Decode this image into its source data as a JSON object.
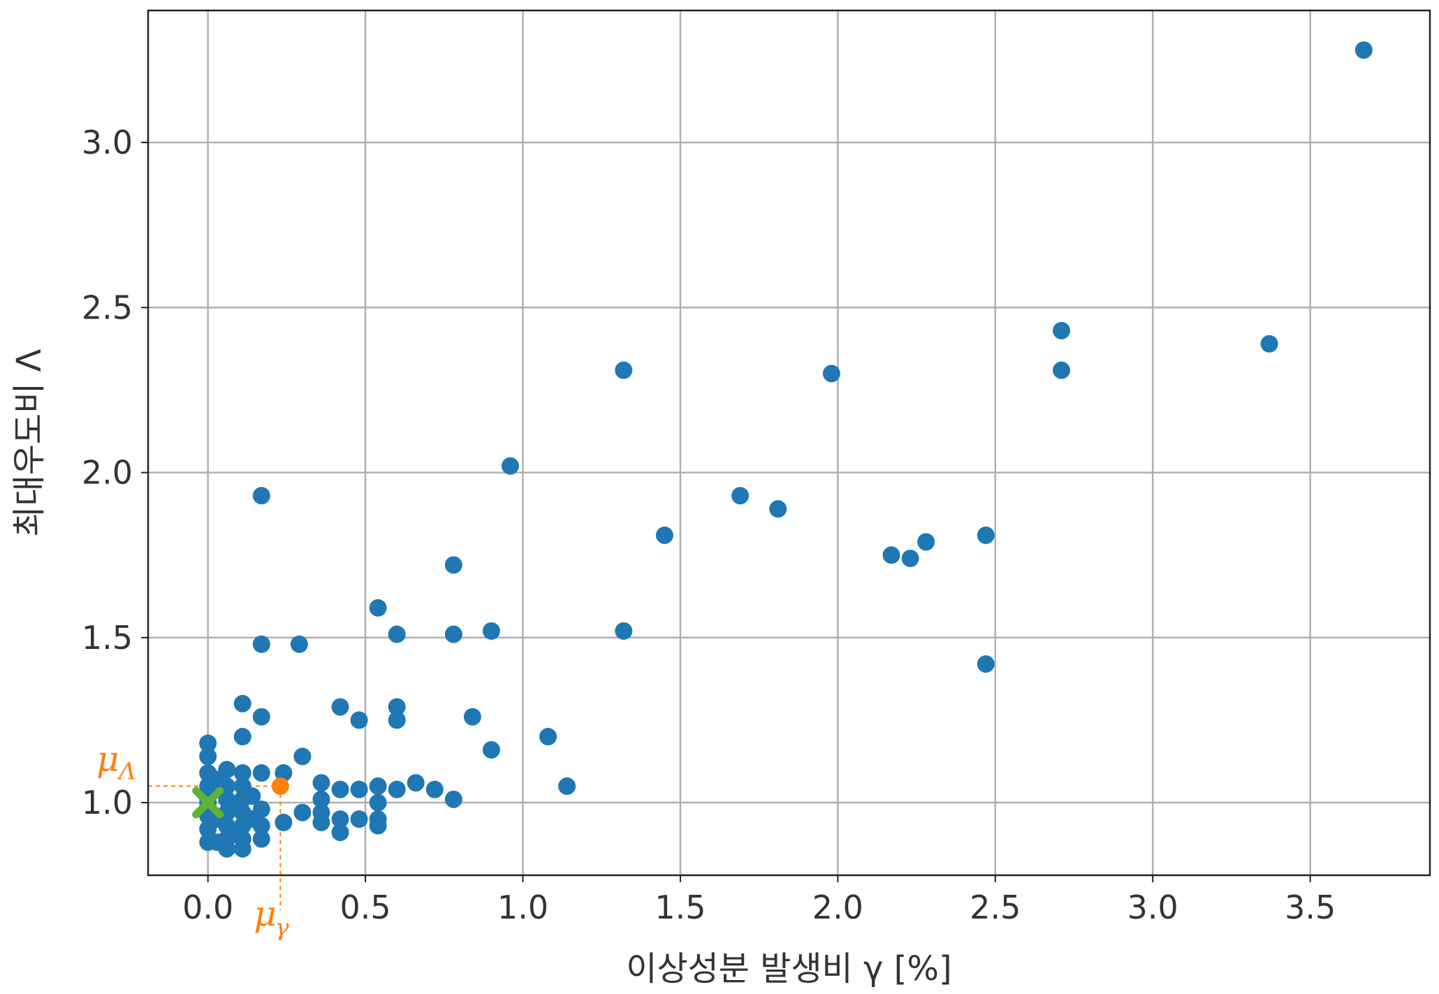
{
  "chart_data": {
    "type": "scatter",
    "title": "",
    "xlabel": "이상성분 발생비 γ [%]",
    "ylabel": "최대우도비 Λ",
    "xlim": [
      -0.19,
      3.88
    ],
    "ylim": [
      0.78,
      3.4
    ],
    "xticks": [
      0.0,
      0.5,
      1.0,
      1.5,
      2.0,
      2.5,
      3.0,
      3.5
    ],
    "yticks": [
      1.0,
      1.5,
      2.0,
      2.5,
      3.0
    ],
    "xtick_labels": [
      "0.0",
      "0.5",
      "1.0",
      "1.5",
      "2.0",
      "2.5",
      "3.0",
      "3.5"
    ],
    "ytick_labels": [
      "1.0",
      "1.5",
      "2.0",
      "2.5",
      "3.0"
    ],
    "grid": true,
    "colors": {
      "points": "#1f77b4",
      "mean": "#ff7f0e",
      "reference": "#5cb336",
      "annotation": "#ff7f0e",
      "grid": "#b0b0b0"
    },
    "series": [
      {
        "points": [
          [
            3.67,
            3.28
          ],
          [
            3.37,
            2.39
          ],
          [
            2.71,
            2.43
          ],
          [
            2.71,
            2.31
          ],
          [
            1.98,
            2.3
          ],
          [
            1.32,
            2.31
          ],
          [
            0.96,
            2.02
          ],
          [
            1.69,
            1.93
          ],
          [
            1.81,
            1.89
          ],
          [
            1.45,
            1.81
          ],
          [
            2.47,
            1.81
          ],
          [
            2.28,
            1.79
          ],
          [
            2.17,
            1.75
          ],
          [
            2.23,
            1.74
          ],
          [
            2.47,
            1.42
          ],
          [
            1.32,
            1.52
          ],
          [
            0.78,
            1.72
          ],
          [
            0.54,
            1.59
          ],
          [
            0.6,
            1.51
          ],
          [
            0.78,
            1.51
          ],
          [
            0.9,
            1.52
          ],
          [
            0.17,
            1.93
          ],
          [
            0.17,
            1.48
          ],
          [
            0.29,
            1.48
          ],
          [
            0.11,
            1.3
          ],
          [
            0.17,
            1.26
          ],
          [
            0.11,
            1.2
          ],
          [
            0.42,
            1.29
          ],
          [
            0.6,
            1.29
          ],
          [
            0.6,
            1.25
          ],
          [
            0.48,
            1.25
          ],
          [
            0.84,
            1.26
          ],
          [
            1.08,
            1.2
          ],
          [
            0.9,
            1.16
          ],
          [
            1.14,
            1.05
          ],
          [
            0.3,
            1.14
          ],
          [
            0.24,
            1.09
          ],
          [
            0.17,
            1.09
          ],
          [
            0.36,
            1.06
          ],
          [
            0.42,
            1.04
          ],
          [
            0.48,
            1.04
          ],
          [
            0.54,
            1.05
          ],
          [
            0.6,
            1.04
          ],
          [
            0.66,
            1.06
          ],
          [
            0.72,
            1.04
          ],
          [
            0.78,
            1.01
          ],
          [
            0.36,
            1.01
          ],
          [
            0.54,
            1.0
          ],
          [
            0.36,
            0.97
          ],
          [
            0.3,
            0.97
          ],
          [
            0.42,
            0.95
          ],
          [
            0.48,
            0.95
          ],
          [
            0.54,
            0.95
          ],
          [
            0.36,
            0.94
          ],
          [
            0.24,
            0.94
          ],
          [
            0.42,
            0.91
          ],
          [
            0.54,
            0.93
          ],
          [
            0.17,
            0.98
          ],
          [
            0.17,
            0.93
          ],
          [
            0.17,
            0.89
          ],
          [
            0.0,
            1.18
          ],
          [
            0.0,
            1.14
          ],
          [
            0.0,
            1.09
          ],
          [
            0.0,
            1.05
          ],
          [
            0.0,
            1.0
          ],
          [
            0.0,
            0.96
          ],
          [
            0.0,
            0.92
          ],
          [
            0.0,
            0.88
          ],
          [
            0.06,
            1.1
          ],
          [
            0.06,
            1.05
          ],
          [
            0.06,
            1.01
          ],
          [
            0.06,
            0.97
          ],
          [
            0.06,
            0.93
          ],
          [
            0.06,
            0.89
          ],
          [
            0.06,
            0.86
          ],
          [
            0.11,
            1.09
          ],
          [
            0.11,
            1.05
          ],
          [
            0.11,
            1.01
          ],
          [
            0.11,
            0.97
          ],
          [
            0.11,
            0.93
          ],
          [
            0.11,
            0.89
          ],
          [
            0.11,
            0.86
          ],
          [
            0.03,
            1.07
          ],
          [
            0.03,
            0.95
          ],
          [
            0.03,
            0.88
          ],
          [
            0.08,
            0.99
          ],
          [
            0.08,
            0.91
          ],
          [
            0.14,
            1.02
          ],
          [
            0.14,
            0.95
          ]
        ]
      }
    ],
    "mean_point": {
      "x": 0.23,
      "y": 1.05,
      "x_label": "μ",
      "x_sub": "γ",
      "y_label": "μ",
      "y_sub": "Λ"
    },
    "reference_marker": {
      "x": 0.0,
      "y": 1.0,
      "shape": "x"
    }
  }
}
